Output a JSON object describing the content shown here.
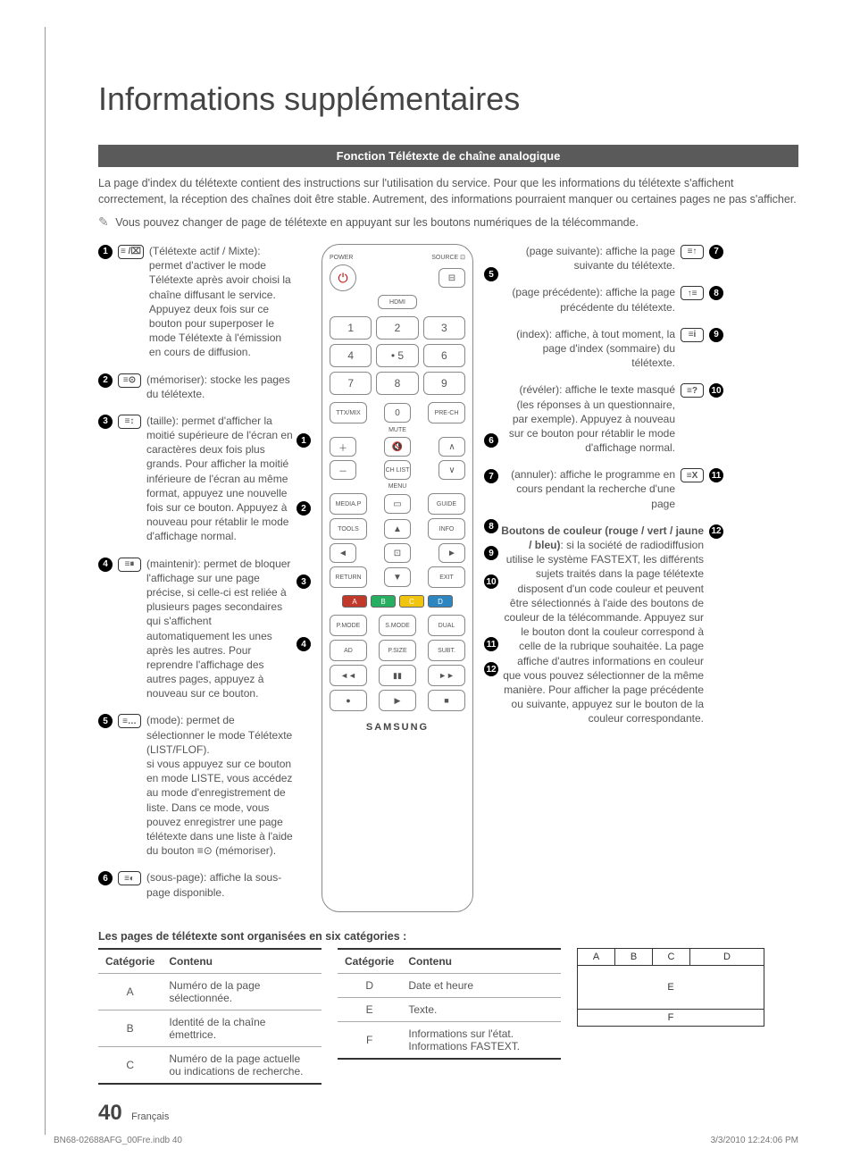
{
  "page": {
    "title": "Informations supplémentaires",
    "section_bar": "Fonction Télétexte de chaîne analogique",
    "intro": "La page d'index du télétexte contient des instructions sur l'utilisation du service. Pour que les informations du télétexte s'affichent correctement, la réception des chaînes doit être stable. Autrement, des informations pourraient manquer ou certaines pages ne pas s'afficher.",
    "note": "Vous pouvez changer de page de télétexte en appuyant sur les boutons numériques de la télécommande."
  },
  "left_items": [
    {
      "num": "1",
      "icon": "≡ /⌧",
      "text": "(Télétexte actif / Mixte): permet d'activer le mode Télétexte après avoir choisi la chaîne diffusant le service. Appuyez deux fois sur ce bouton pour superposer le mode Télétexte à l'émission en cours de diffusion."
    },
    {
      "num": "2",
      "icon": "≡⊙",
      "text": "(mémoriser): stocke les pages du télétexte."
    },
    {
      "num": "3",
      "icon": "≡↕",
      "text": "(taille): permet d'afficher la moitié supérieure de l'écran en caractères deux fois plus grands. Pour afficher la moitié inférieure de l'écran au même format, appuyez une nouvelle fois sur ce bouton. Appuyez à nouveau pour rétablir le mode d'affichage normal."
    },
    {
      "num": "4",
      "icon": "≡⏸",
      "text": "(maintenir): permet de bloquer l'affichage sur une page précise, si celle-ci est reliée à plusieurs pages secondaires qui s'affichent automatiquement les unes après les autres. Pour reprendre l'affichage des autres pages, appuyez à nouveau sur ce bouton."
    },
    {
      "num": "5",
      "icon": "≡…",
      "text": "(mode): permet de sélectionner le mode Télétexte (LIST/FLOF).\nsi vous appuyez sur ce bouton en mode LISTE, vous accédez au mode d'enregistrement de liste. Dans ce mode, vous pouvez enregistrer une page télétexte dans une liste à l'aide du bouton ≡⊙ (mémoriser)."
    },
    {
      "num": "6",
      "icon": "≡◐",
      "text": "(sous-page): affiche la sous-page disponible."
    }
  ],
  "right_items": [
    {
      "num": "7",
      "icon": "≡↑",
      "text": "(page suivante): affiche la page suivante du télétexte."
    },
    {
      "num": "8",
      "icon": "↑≡",
      "text": "(page précédente): affiche la page précédente du télétexte."
    },
    {
      "num": "9",
      "icon": "≡i",
      "text": "(index): affiche, à tout moment, la page d'index (sommaire) du télétexte."
    },
    {
      "num": "10",
      "icon": "≡?",
      "text": "(révéler): affiche le texte masqué (les réponses à un questionnaire, par exemple). Appuyez à nouveau sur ce bouton pour rétablir le mode d'affichage normal."
    },
    {
      "num": "11",
      "icon": "≡X",
      "text": "(annuler): affiche le programme en cours pendant la recherche d'une page"
    },
    {
      "num": "12",
      "icon": "",
      "bold": "Boutons de couleur (rouge / vert / jaune / bleu)",
      "text": ": si la société de radiodiffusion utilise le système FASTEXT, les différents sujets traités dans la page télétexte disposent d'un code couleur et peuvent être sélectionnés à l'aide des boutons de couleur de la télécommande. Appuyez sur le bouton dont la couleur correspond à celle de la rubrique souhaitée. La page affiche d'autres informations en couleur que vous pouvez sélectionner de la même manière. Pour afficher la page précédente ou suivante, appuyez sur le bouton de la couleur correspondante."
    }
  ],
  "remote": {
    "power_label": "POWER",
    "source_label": "SOURCE ⊡",
    "hdmi": "HDMI",
    "numpad": [
      "1",
      "2",
      "3",
      "4",
      "• 5",
      "6",
      "7",
      "8",
      "9"
    ],
    "ttx": "TTX/MIX",
    "zero": "0",
    "prech": "PRE-CH",
    "mute": "MUTE",
    "chlist": "CH LIST",
    "menu": "MENU",
    "mediap": "MEDIA.P",
    "guide": "GUIDE",
    "tools": "TOOLS",
    "info": "INFO",
    "return": "RETURN",
    "exit": "EXIT",
    "colors": [
      "A",
      "B",
      "C",
      "D"
    ],
    "color_hex": [
      "#c0392b",
      "#27ae60",
      "#f1c40f",
      "#2e86c1"
    ],
    "row1": [
      "P.MODE",
      "S.MODE",
      "DUAL"
    ],
    "row2": [
      "AD",
      "P.SIZE",
      "SUBT."
    ],
    "transport1": [
      "◄◄",
      "▮▮",
      "►►"
    ],
    "transport2": [
      "●",
      "▶",
      "■"
    ],
    "brand": "SAMSUNG"
  },
  "table": {
    "caption": "Les pages de télétexte sont organisées en six catégories :",
    "headers": [
      "Catégorie",
      "Contenu"
    ],
    "left": [
      {
        "c": "A",
        "t": "Numéro de la page sélectionnée."
      },
      {
        "c": "B",
        "t": "Identité de la chaîne émettrice."
      },
      {
        "c": "C",
        "t": "Numéro de la page actuelle ou indications de recherche."
      }
    ],
    "right": [
      {
        "c": "D",
        "t": "Date et heure"
      },
      {
        "c": "E",
        "t": "Texte."
      },
      {
        "c": "F",
        "t": "Informations sur l'état. Informations FASTEXT."
      }
    ]
  },
  "diagram": {
    "cells_top": [
      "A",
      "B",
      "C",
      "D"
    ],
    "mid": "E",
    "bot": "F"
  },
  "footer": {
    "page_number": "40",
    "lang": "Français",
    "file": "BN68-02688AFG_00Fre.indb   40",
    "timestamp": "3/3/2010   12:24:06 PM"
  }
}
